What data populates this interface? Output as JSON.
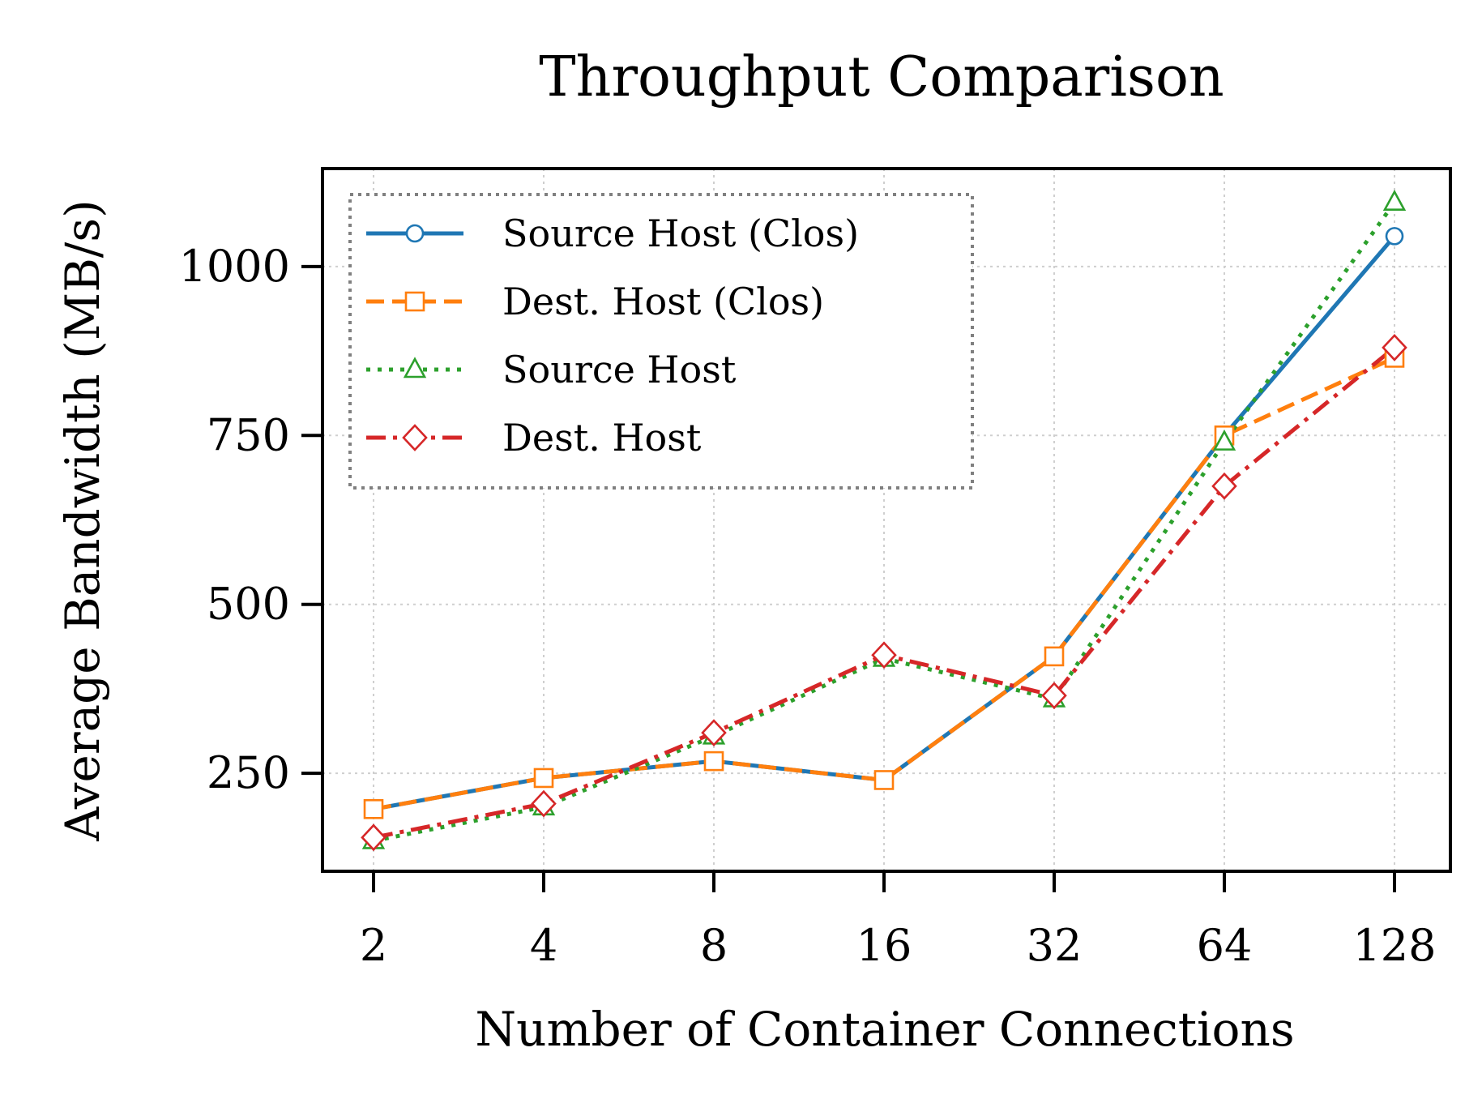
{
  "chart_data": {
    "type": "line",
    "title": "Throughput Comparison",
    "xlabel": "Number of Container Connections",
    "ylabel": "Average Bandwidth (MB/s)",
    "categories": [
      "2",
      "4",
      "8",
      "16",
      "32",
      "64",
      "128"
    ],
    "x_scale": "log2",
    "ylim": [
      105,
      1145
    ],
    "yticks": [
      250,
      500,
      750,
      1000
    ],
    "grid": true,
    "legend_position": "upper-left",
    "series": [
      {
        "name": "Source Host (Clos)",
        "values": [
          197,
          243,
          268,
          240,
          423,
          750,
          1045
        ],
        "color": "#1f77b4",
        "linestyle": "solid",
        "marker": "circle"
      },
      {
        "name": "Dest. Host (Clos)",
        "values": [
          197,
          243,
          268,
          240,
          423,
          750,
          865
        ],
        "color": "#ff7f0e",
        "linestyle": "dashed",
        "marker": "square"
      },
      {
        "name": "Source Host",
        "values": [
          150,
          200,
          305,
          420,
          360,
          740,
          1095
        ],
        "color": "#2ca02c",
        "linestyle": "dotted",
        "marker": "triangle"
      },
      {
        "name": "Dest. Host",
        "values": [
          155,
          205,
          310,
          425,
          365,
          675,
          880
        ],
        "color": "#d62728",
        "linestyle": "dashdot",
        "marker": "diamond"
      }
    ]
  }
}
